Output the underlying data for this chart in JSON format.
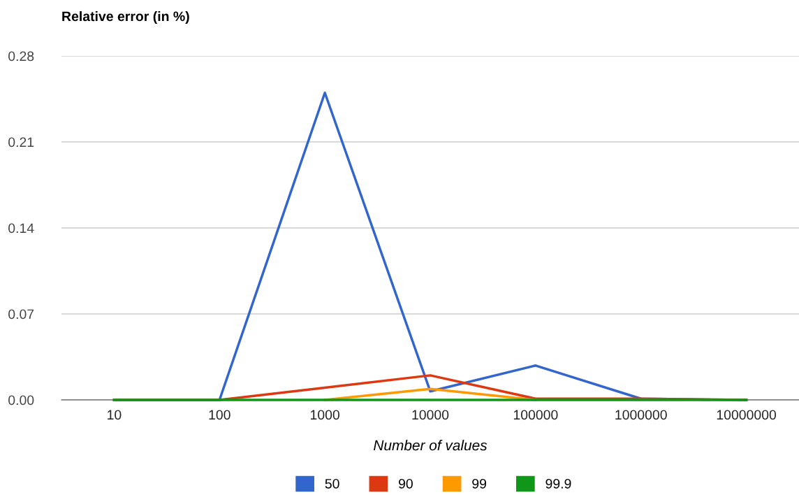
{
  "chart_data": {
    "type": "line",
    "title": "Relative error (in %)",
    "xlabel": "Number of values",
    "categories": [
      "10",
      "100",
      "1000",
      "10000",
      "100000",
      "1000000",
      "10000000"
    ],
    "series": [
      {
        "name": "50",
        "color": "#3366cc",
        "values": [
          0,
          0,
          0.25,
          0.007,
          0.028,
          0.001,
          0
        ]
      },
      {
        "name": "90",
        "color": "#dc3912",
        "values": [
          0,
          0,
          0.01,
          0.02,
          0.001,
          0.001,
          0
        ]
      },
      {
        "name": "99",
        "color": "#ff9900",
        "values": [
          null,
          null,
          0,
          0.009,
          0,
          null,
          null
        ]
      },
      {
        "name": "99.9",
        "color": "#109618",
        "values": [
          0,
          0,
          0,
          0,
          0,
          0,
          0
        ]
      }
    ],
    "ylim": [
      0,
      0.28
    ],
    "yticks": [
      {
        "value": 0,
        "label": "0.00"
      },
      {
        "value": 0.07,
        "label": "0.07"
      },
      {
        "value": 0.14,
        "label": "0.14"
      },
      {
        "value": 0.21,
        "label": "0.21"
      },
      {
        "value": 0.28,
        "label": "0.28"
      }
    ],
    "grid": "y",
    "legend": "bottom"
  }
}
